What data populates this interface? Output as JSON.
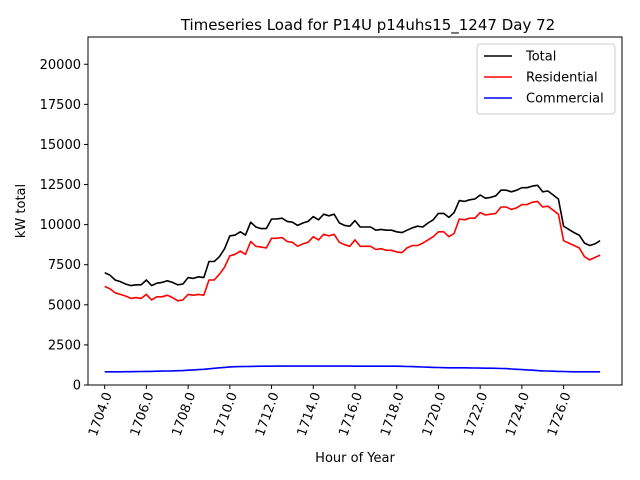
{
  "chart_data": {
    "type": "line",
    "title": "Timeseries Load for P14U p14uhs15_1247  Day 72",
    "xlabel": "Hour of Year",
    "ylabel": "kW total",
    "xlim": [
      1703.2,
      1728.8
    ],
    "ylim": [
      0,
      21700
    ],
    "xticks": [
      1704,
      1706,
      1708,
      1710,
      1712,
      1714,
      1716,
      1718,
      1720,
      1722,
      1724,
      1726
    ],
    "xtick_labels": [
      "1704.0",
      "1706.0",
      "1708.0",
      "1710.0",
      "1712.0",
      "1714.0",
      "1716.0",
      "1718.0",
      "1720.0",
      "1722.0",
      "1724.0",
      "1726.0"
    ],
    "yticks": [
      0,
      2500,
      5000,
      7500,
      10000,
      12500,
      15000,
      17500,
      20000
    ],
    "ytick_labels": [
      "0",
      "2500",
      "5000",
      "7500",
      "10000",
      "12500",
      "15000",
      "17500",
      "20000"
    ],
    "grid": false,
    "legend_position": "top-right",
    "x_start": 1704,
    "x_step": 0.25,
    "series": [
      {
        "name": "Total",
        "color": "#000000",
        "values": [
          7000,
          6850,
          6550,
          6450,
          6300,
          6200,
          6250,
          6250,
          6550,
          6200,
          6350,
          6400,
          6500,
          6400,
          6250,
          6300,
          6700,
          6650,
          6750,
          6700,
          7700,
          7700,
          8000,
          8500,
          9300,
          9350,
          9550,
          9350,
          10150,
          9850,
          9750,
          9750,
          10350,
          10350,
          10400,
          10200,
          10150,
          9950,
          10100,
          10200,
          10500,
          10300,
          10650,
          10550,
          10650,
          10100,
          9950,
          9900,
          10250,
          9850,
          9850,
          9850,
          9650,
          9700,
          9650,
          9650,
          9550,
          9500,
          9650,
          9800,
          9900,
          9850,
          10100,
          10300,
          10700,
          10700,
          10450,
          10750,
          11500,
          11450,
          11550,
          11600,
          11850,
          11650,
          11700,
          11800,
          12150,
          12150,
          12050,
          12150,
          12300,
          12300,
          12400,
          12450,
          12050,
          12100,
          11850,
          11600,
          9900,
          9700,
          9500,
          9350,
          8850,
          8700,
          8800,
          9000
        ]
      },
      {
        "name": "Residential",
        "color": "#ff0000",
        "values": [
          6150,
          6000,
          5750,
          5650,
          5550,
          5400,
          5450,
          5400,
          5650,
          5300,
          5500,
          5500,
          5600,
          5450,
          5250,
          5300,
          5650,
          5600,
          5650,
          5600,
          6550,
          6550,
          6900,
          7350,
          8050,
          8150,
          8350,
          8150,
          8950,
          8650,
          8600,
          8550,
          9150,
          9150,
          9200,
          8950,
          8900,
          8650,
          8800,
          8900,
          9250,
          9050,
          9400,
          9300,
          9400,
          8900,
          8750,
          8650,
          9050,
          8650,
          8650,
          8650,
          8450,
          8500,
          8400,
          8400,
          8300,
          8250,
          8550,
          8700,
          8700,
          8850,
          9050,
          9250,
          9550,
          9550,
          9250,
          9450,
          10350,
          10300,
          10400,
          10400,
          10750,
          10600,
          10650,
          10700,
          11100,
          11100,
          10950,
          11050,
          11250,
          11250,
          11400,
          11450,
          11100,
          11150,
          10900,
          10650,
          9000,
          8850,
          8700,
          8550,
          8000,
          7800,
          7950,
          8100
        ]
      },
      {
        "name": "Commercial",
        "color": "#0000ff",
        "values": [
          820,
          820,
          820,
          825,
          830,
          830,
          835,
          840,
          850,
          850,
          860,
          865,
          870,
          880,
          890,
          900,
          920,
          940,
          960,
          980,
          1010,
          1040,
          1070,
          1100,
          1130,
          1140,
          1150,
          1155,
          1160,
          1165,
          1170,
          1175,
          1175,
          1180,
          1180,
          1180,
          1180,
          1180,
          1180,
          1180,
          1180,
          1180,
          1180,
          1180,
          1180,
          1180,
          1180,
          1180,
          1175,
          1175,
          1175,
          1175,
          1175,
          1175,
          1175,
          1175,
          1170,
          1165,
          1155,
          1145,
          1135,
          1125,
          1110,
          1100,
          1090,
          1080,
          1075,
          1070,
          1070,
          1070,
          1065,
          1060,
          1055,
          1050,
          1045,
          1040,
          1030,
          1020,
          1000,
          980,
          960,
          940,
          920,
          900,
          880,
          870,
          860,
          850,
          840,
          830,
          825,
          820,
          820,
          820,
          820,
          820
        ]
      }
    ]
  }
}
